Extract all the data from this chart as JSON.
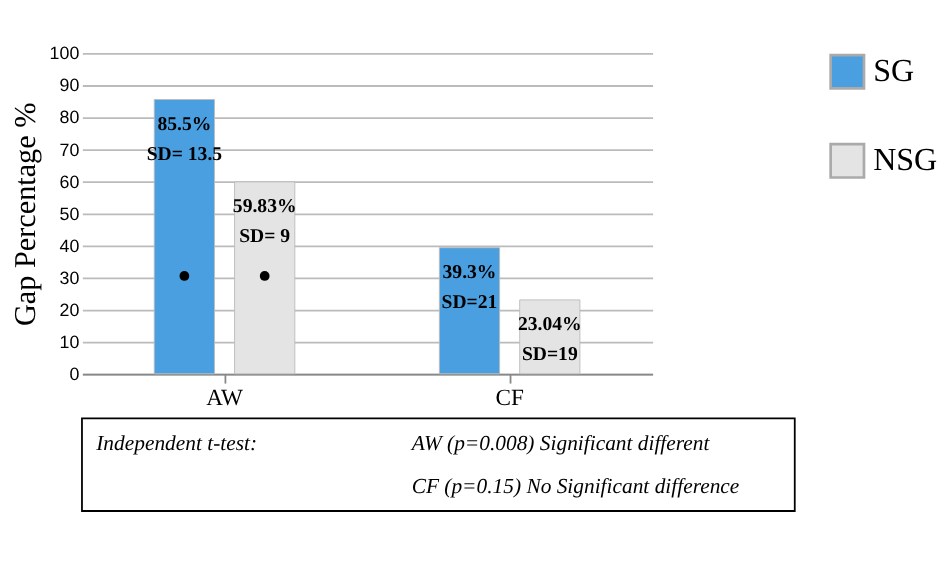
{
  "chart_data": {
    "type": "bar",
    "ylabel": "Gap Percentage %",
    "categories": [
      "AW",
      "CF"
    ],
    "series": [
      {
        "name": "SG",
        "color": "#4a9fe0",
        "values": [
          85.5,
          39.3
        ],
        "value_labels": [
          "85.5%\nSD= 13.5",
          "39.3%\nSD=21"
        ]
      },
      {
        "name": "NSG",
        "color": "#e4e4e4",
        "values": [
          59.83,
          23.04
        ],
        "value_labels": [
          "59.83%\nSD= 9",
          "23.04%\nSD=19"
        ]
      },
      {
        "type": "scatter",
        "color": "#000000",
        "values": [
          30.5,
          null
        ]
      },
      {
        "type": "scatter",
        "color": "#000000",
        "values": [
          30.5,
          null
        ]
      }
    ],
    "ylim": [
      0,
      100
    ],
    "yticks": [
      0,
      10,
      20,
      30,
      40,
      50,
      60,
      70,
      80,
      90,
      100
    ],
    "grid": "y",
    "legend": "right",
    "marker": "circle",
    "annotations": [
      "Independent t-test:",
      "AW (p=0.008) Significant different",
      "CF (p=0.15) No Significant difference"
    ]
  }
}
